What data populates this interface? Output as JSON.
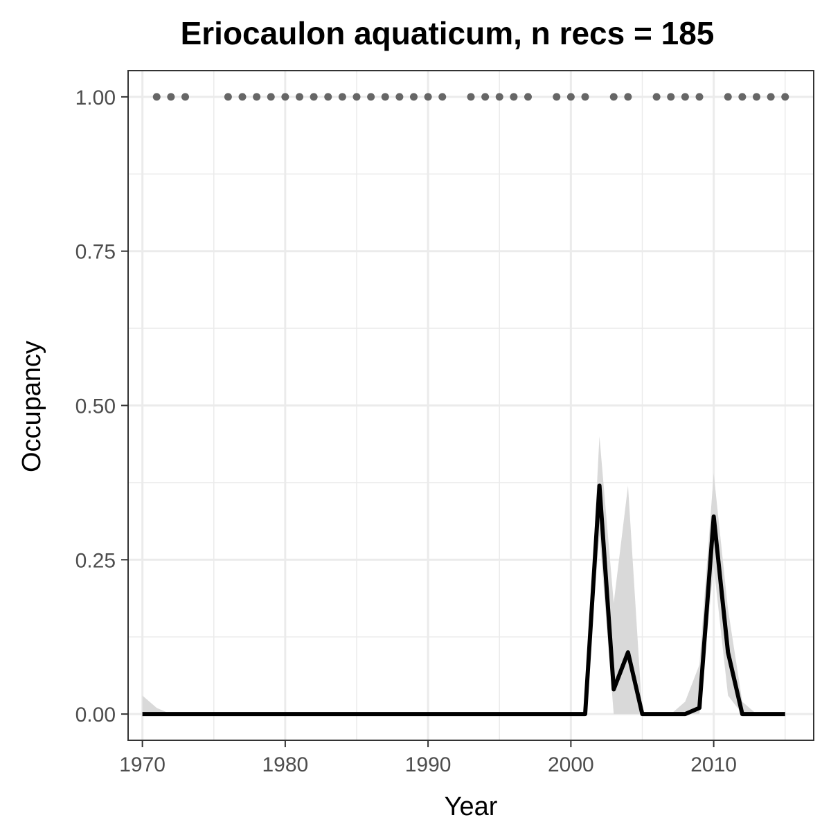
{
  "chart_data": {
    "type": "line",
    "title": "Eriocaulon aquaticum, n recs = 185",
    "xlabel": "Year",
    "ylabel": "Occupancy",
    "xlim": [
      1969,
      2017
    ],
    "ylim": [
      -0.0425,
      1.0425
    ],
    "x_ticks": [
      1970,
      1980,
      1990,
      2000,
      2010
    ],
    "x_tick_labels": [
      "1970",
      "1980",
      "1990",
      "2000",
      "2010"
    ],
    "x_minor_ticks": [
      1975,
      1985,
      1995,
      2005,
      2015
    ],
    "y_ticks": [
      0,
      0.25,
      0.5,
      0.75,
      1.0
    ],
    "y_tick_labels": [
      "0.00",
      "0.25",
      "0.50",
      "0.75",
      "1.00"
    ],
    "y_minor_ticks": [
      0.125,
      0.375,
      0.625,
      0.875
    ],
    "grid": true,
    "legend": "none",
    "colors": {
      "line": "#000000",
      "ribbon": "#d9d9d9",
      "points": "#666666",
      "grid": "#ebebeb",
      "panel_border": "#333333"
    },
    "series": [
      {
        "x": [
          1970,
          1971,
          1972,
          1973,
          1974,
          1975,
          1976,
          1977,
          1978,
          1979,
          1980,
          1981,
          1982,
          1983,
          1984,
          1985,
          1986,
          1987,
          1988,
          1989,
          1990,
          1991,
          1992,
          1993,
          1994,
          1995,
          1996,
          1997,
          1998,
          1999,
          2000,
          2001,
          2002,
          2003,
          2004,
          2005,
          2006,
          2007,
          2008,
          2009,
          2010,
          2011,
          2012,
          2013,
          2014,
          2015
        ],
        "values": [
          0,
          0,
          0,
          0,
          0,
          0,
          0,
          0,
          0,
          0,
          0,
          0,
          0,
          0,
          0,
          0,
          0,
          0,
          0,
          0,
          0,
          0,
          0,
          0,
          0,
          0,
          0,
          0,
          0,
          0,
          0,
          0,
          0.37,
          0.04,
          0.1,
          0,
          0,
          0,
          0,
          0.01,
          0.32,
          0.1,
          0,
          0,
          0,
          0
        ],
        "lower": [
          0,
          0,
          0,
          0,
          0,
          0,
          0,
          0,
          0,
          0,
          0,
          0,
          0,
          0,
          0,
          0,
          0,
          0,
          0,
          0,
          0,
          0,
          0,
          0,
          0,
          0,
          0,
          0,
          0,
          0,
          0,
          0,
          0.29,
          0,
          0,
          0,
          0,
          0,
          0,
          0,
          0.24,
          0.03,
          0,
          0,
          0,
          0
        ],
        "upper": [
          0.03,
          0.01,
          0,
          0,
          0,
          0,
          0,
          0,
          0,
          0,
          0,
          0,
          0,
          0,
          0,
          0,
          0,
          0,
          0,
          0,
          0,
          0,
          0,
          0,
          0,
          0,
          0,
          0,
          0,
          0,
          0,
          0,
          0.45,
          0.18,
          0.37,
          0,
          0,
          0,
          0.02,
          0.08,
          0.39,
          0.17,
          0.02,
          0,
          0,
          0
        ]
      }
    ],
    "record_years": [
      1971,
      1972,
      1973,
      1976,
      1977,
      1978,
      1979,
      1980,
      1981,
      1982,
      1983,
      1984,
      1985,
      1986,
      1987,
      1988,
      1989,
      1990,
      1991,
      1993,
      1994,
      1995,
      1996,
      1997,
      1999,
      2000,
      2001,
      2003,
      2004,
      2006,
      2007,
      2008,
      2009,
      2011,
      2012,
      2013,
      2014,
      2015
    ],
    "record_value": 1.0
  }
}
